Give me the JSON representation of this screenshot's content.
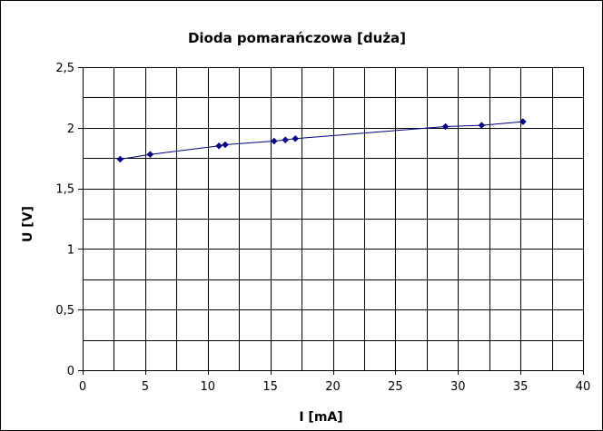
{
  "chart_data": {
    "type": "scatter",
    "title": "Dioda pomarańczowa [duża]",
    "xlabel": "I [mA]",
    "ylabel": "U [V]",
    "xlim": [
      0,
      40
    ],
    "ylim": [
      0,
      2.5
    ],
    "x_ticks": [
      0,
      5,
      10,
      15,
      20,
      25,
      30,
      35,
      40
    ],
    "x_tick_labels": [
      "0",
      "5",
      "10",
      "15",
      "20",
      "25",
      "30",
      "35",
      "40"
    ],
    "y_ticks": [
      0,
      0.5,
      1,
      1.5,
      2,
      2.5
    ],
    "y_tick_labels": [
      "0",
      "0,5",
      "1",
      "1,5",
      "2",
      "2,5"
    ],
    "x_minor_gridlines": [
      2.5,
      7.5,
      12.5,
      17.5,
      22.5,
      27.5,
      32.5,
      37.5
    ],
    "y_minor_gridlines": [
      0.25,
      0.75,
      1.25,
      1.75,
      2.25
    ],
    "grid": true,
    "legend": false,
    "series": [
      {
        "marker": "diamond",
        "color": "#000080",
        "line": "trendline",
        "x": [
          3.0,
          5.4,
          10.9,
          11.4,
          15.3,
          16.2,
          17.0,
          29.0,
          31.9,
          35.2
        ],
        "y": [
          1.74,
          1.78,
          1.85,
          1.86,
          1.89,
          1.9,
          1.91,
          2.01,
          2.02,
          2.05
        ]
      }
    ]
  }
}
